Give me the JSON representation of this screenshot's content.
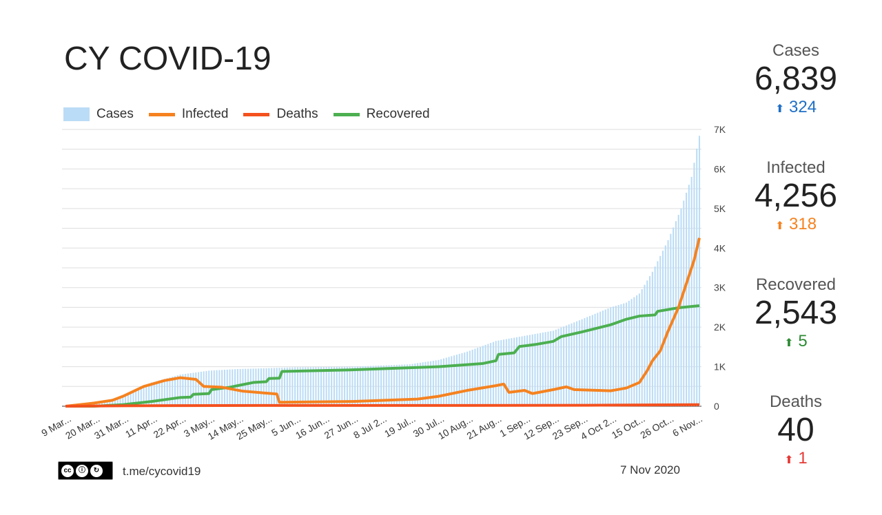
{
  "title": "CY COVID-19",
  "legend": [
    {
      "label": "Cases",
      "color": "#bbdcf6",
      "kind": "bar"
    },
    {
      "label": "Infected",
      "color": "#f5821f",
      "kind": "line"
    },
    {
      "label": "Deaths",
      "color": "#f4511e",
      "kind": "line"
    },
    {
      "label": "Recovered",
      "color": "#4caf50",
      "kind": "line"
    }
  ],
  "stats": [
    {
      "label": "Cases",
      "value": "6,839",
      "change": "324",
      "color": "#1e6fc6"
    },
    {
      "label": "Infected",
      "value": "4,256",
      "change": "318",
      "color": "#f5821f"
    },
    {
      "label": "Recovered",
      "value": "2,543",
      "change": "5",
      "color": "#2e8b34"
    },
    {
      "label": "Deaths",
      "value": "40",
      "change": "1",
      "color": "#e53935"
    }
  ],
  "footer": {
    "link": "t.me/cycovid19",
    "date": "7 Nov 2020",
    "license": "cc by sa"
  },
  "chart_data": {
    "type": "bar+line",
    "x_unit": "days since 9 Mar 2020",
    "days": 244,
    "x_tick_labels": [
      "9 Mar...",
      "20 Mar...",
      "31 Mar...",
      "11 Apr...",
      "22 Apr...",
      "3 May...",
      "14 May...",
      "25 May...",
      "5 Jun...",
      "16 Jun...",
      "27 Jun...",
      "8 Jul 2...",
      "19 Jul...",
      "30 Jul...",
      "10 Aug...",
      "21 Aug...",
      "1 Sep...",
      "12 Sep...",
      "23 Sep...",
      "4 Oct 2...",
      "15 Oct...",
      "26 Oct...",
      "6 Nov..."
    ],
    "x_tick_step_days": 11,
    "y_ticks": [
      "0",
      "1K",
      "2K",
      "3K",
      "4K",
      "5K",
      "6K",
      "7K"
    ],
    "ylim": [
      0,
      7000
    ],
    "y_axis_side": "right",
    "grid": true,
    "series": [
      {
        "name": "Cases",
        "type": "bar",
        "points": [
          [
            0,
            2
          ],
          [
            11,
            70
          ],
          [
            22,
            260
          ],
          [
            33,
            600
          ],
          [
            44,
            800
          ],
          [
            55,
            900
          ],
          [
            66,
            940
          ],
          [
            77,
            960
          ],
          [
            88,
            985
          ],
          [
            110,
            1000
          ],
          [
            132,
            1060
          ],
          [
            143,
            1170
          ],
          [
            154,
            1380
          ],
          [
            165,
            1650
          ],
          [
            176,
            1780
          ],
          [
            187,
            1910
          ],
          [
            198,
            2200
          ],
          [
            209,
            2500
          ],
          [
            215,
            2620
          ],
          [
            220,
            2850
          ],
          [
            225,
            3400
          ],
          [
            231,
            4200
          ],
          [
            236,
            5000
          ],
          [
            240,
            5800
          ],
          [
            242,
            6515
          ],
          [
            243,
            6839
          ]
        ]
      },
      {
        "name": "Infected",
        "type": "line",
        "points": [
          [
            0,
            0
          ],
          [
            11,
            80
          ],
          [
            18,
            150
          ],
          [
            22,
            250
          ],
          [
            30,
            500
          ],
          [
            38,
            650
          ],
          [
            44,
            720
          ],
          [
            50,
            680
          ],
          [
            53,
            500
          ],
          [
            60,
            480
          ],
          [
            68,
            380
          ],
          [
            77,
            330
          ],
          [
            81,
            310
          ],
          [
            82,
            100
          ],
          [
            110,
            120
          ],
          [
            135,
            180
          ],
          [
            143,
            250
          ],
          [
            154,
            400
          ],
          [
            165,
            520
          ],
          [
            168,
            560
          ],
          [
            170,
            350
          ],
          [
            176,
            400
          ],
          [
            179,
            320
          ],
          [
            187,
            420
          ],
          [
            192,
            490
          ],
          [
            195,
            420
          ],
          [
            209,
            390
          ],
          [
            215,
            460
          ],
          [
            220,
            600
          ],
          [
            223,
            900
          ],
          [
            225,
            1150
          ],
          [
            228,
            1400
          ],
          [
            231,
            1900
          ],
          [
            235,
            2500
          ],
          [
            238,
            3100
          ],
          [
            241,
            3700
          ],
          [
            243,
            4256
          ]
        ]
      },
      {
        "name": "Deaths",
        "type": "line",
        "points": [
          [
            0,
            0
          ],
          [
            22,
            10
          ],
          [
            44,
            15
          ],
          [
            77,
            19
          ],
          [
            150,
            20
          ],
          [
            200,
            24
          ],
          [
            243,
            40
          ]
        ]
      },
      {
        "name": "Recovered",
        "type": "line",
        "points": [
          [
            0,
            0
          ],
          [
            11,
            0
          ],
          [
            22,
            40
          ],
          [
            33,
            120
          ],
          [
            44,
            220
          ],
          [
            48,
            230
          ],
          [
            49,
            300
          ],
          [
            55,
            320
          ],
          [
            56,
            420
          ],
          [
            63,
            480
          ],
          [
            66,
            520
          ],
          [
            72,
            600
          ],
          [
            77,
            620
          ],
          [
            78,
            700
          ],
          [
            82,
            710
          ],
          [
            83,
            880
          ],
          [
            110,
            920
          ],
          [
            143,
            1000
          ],
          [
            160,
            1080
          ],
          [
            165,
            1150
          ],
          [
            166,
            1310
          ],
          [
            172,
            1350
          ],
          [
            174,
            1510
          ],
          [
            180,
            1560
          ],
          [
            187,
            1640
          ],
          [
            190,
            1760
          ],
          [
            198,
            1880
          ],
          [
            209,
            2060
          ],
          [
            215,
            2200
          ],
          [
            220,
            2280
          ],
          [
            226,
            2310
          ],
          [
            227,
            2400
          ],
          [
            235,
            2490
          ],
          [
            243,
            2543
          ]
        ]
      }
    ]
  }
}
